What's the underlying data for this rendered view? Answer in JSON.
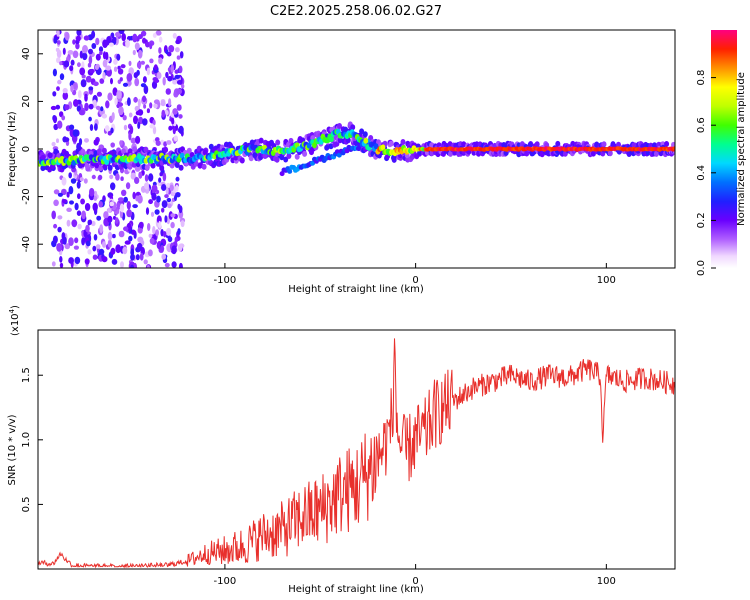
{
  "title": "C2E2.2025.258.06.02.G27",
  "chart_data": [
    {
      "type": "heatmap",
      "xlabel": "Height of straight line (km)",
      "ylabel": "Frequency (Hz)",
      "xlim": [
        -198,
        136
      ],
      "ylim": [
        -50,
        50
      ],
      "xticks": [
        -100,
        0,
        100
      ],
      "yticks": [
        -40,
        -20,
        0,
        20,
        40
      ],
      "ridge": {
        "x": [
          -198,
          -185,
          -170,
          -150,
          -130,
          -115,
          -100,
          -85,
          -70,
          -55,
          -45,
          -38,
          -33,
          -28,
          -20,
          -12,
          -5,
          0,
          10,
          30,
          60,
          100,
          136
        ],
        "freq": [
          -5,
          -5,
          -4.5,
          -4,
          -4,
          -4,
          -2,
          0,
          -1,
          2,
          5,
          7,
          6,
          3,
          0,
          -1,
          -0.5,
          0,
          0,
          0,
          0,
          0,
          0
        ]
      },
      "colorbar": {
        "label": "Normalized spectral amplitude",
        "ticks": [
          0.0,
          0.2,
          0.4,
          0.6,
          0.8
        ],
        "range": [
          0,
          1
        ]
      }
    },
    {
      "type": "line",
      "xlabel": "Height of straight line (km)",
      "ylabel": "SNR (10 * v/v)",
      "y_multiplier_label": "(x10^4)",
      "y_multiplier_base": "(x10",
      "y_multiplier_exp": "4",
      "y_multiplier_close": ")",
      "xlim": [
        -198,
        136
      ],
      "ylim": [
        0,
        1.85
      ],
      "xticks": [
        -100,
        0,
        100
      ],
      "yticks": [
        0.5,
        1.0,
        1.5
      ],
      "ytick_labels": [
        "0.5",
        "1.0",
        "1.5"
      ],
      "series": [
        {
          "name": "SNR",
          "color": "#e8302c",
          "x": [
            -198,
            -190,
            -186,
            -184,
            -180,
            -170,
            -150,
            -130,
            -120,
            -110,
            -100,
            -90,
            -80,
            -70,
            -60,
            -50,
            -40,
            -30,
            -25,
            -20,
            -15,
            -12,
            -11,
            -10,
            -8,
            -5,
            0,
            5,
            10,
            20,
            30,
            40,
            50,
            60,
            70,
            80,
            90,
            97,
            98,
            100,
            110,
            120,
            130,
            136
          ],
          "values": [
            0.05,
            0.04,
            0.12,
            0.08,
            0.03,
            0.02,
            0.02,
            0.03,
            0.06,
            0.12,
            0.14,
            0.18,
            0.26,
            0.3,
            0.4,
            0.45,
            0.58,
            0.65,
            0.75,
            0.85,
            1.0,
            1.2,
            1.85,
            1.15,
            0.95,
            0.9,
            1.0,
            1.05,
            1.2,
            1.3,
            1.4,
            1.45,
            1.5,
            1.45,
            1.5,
            1.48,
            1.55,
            1.5,
            0.95,
            1.5,
            1.45,
            1.48,
            1.45,
            1.43
          ]
        }
      ]
    }
  ]
}
